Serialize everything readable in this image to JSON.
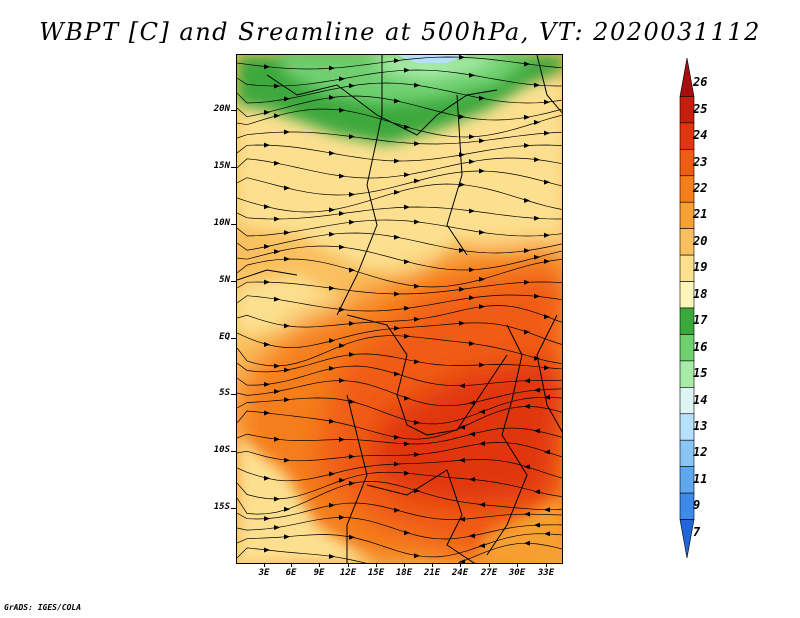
{
  "title": "WBPT [C] and Sreamline at 500hPa, VT: 2020031112",
  "credit": "GrADS: IGES/COLA",
  "map": {
    "lat_labels": [
      "20N",
      "15N",
      "10N",
      "5N",
      "EQ",
      "5S",
      "10S",
      "15S"
    ],
    "lon_labels": [
      "3E",
      "6E",
      "9E",
      "12E",
      "15E",
      "18E",
      "21E",
      "24E",
      "27E",
      "30E",
      "33E"
    ]
  },
  "colorbar": {
    "labels": [
      "26",
      "25",
      "24",
      "23",
      "22",
      "21",
      "20",
      "19",
      "18",
      "17",
      "16",
      "15",
      "14",
      "13",
      "12",
      "11",
      "9",
      "7"
    ],
    "colors": [
      "#a50f0f",
      "#c81e0e",
      "#e0360f",
      "#f05c14",
      "#f57e1a",
      "#f7a033",
      "#fac060",
      "#fce090",
      "#fef5bc",
      "#3ca83c",
      "#6fd06f",
      "#a8eba8",
      "#ddf6f4",
      "#b6e0fb",
      "#8ac6f5",
      "#5fa8ef",
      "#3d8aea",
      "#2166d8"
    ]
  },
  "colors": {
    "frame": "#000000",
    "streamline": "#000000",
    "background": "#ffffff"
  }
}
